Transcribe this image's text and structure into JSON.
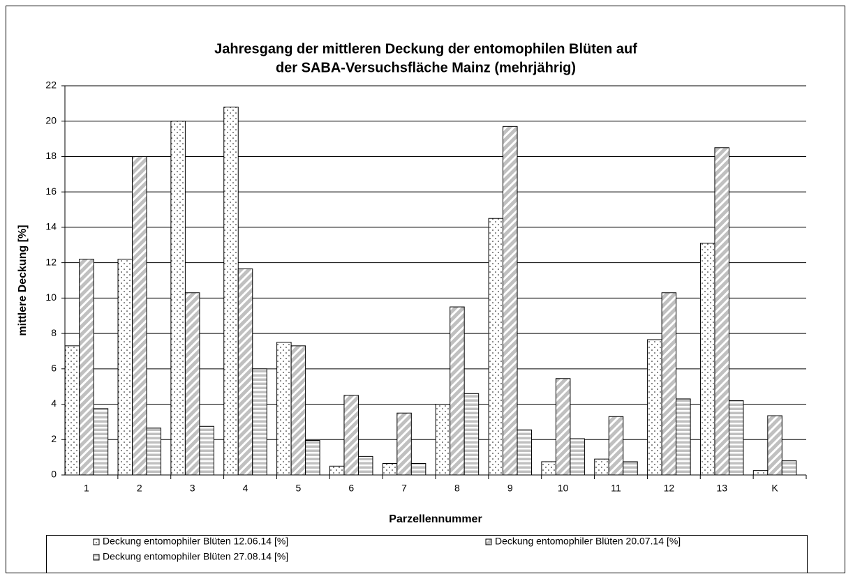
{
  "chart_data": {
    "type": "bar",
    "title_lines": [
      "Jahresgang der mittleren Deckung der entomophilen Blüten auf",
      "der SABA-Versuchsfläche Mainz (mehrjährig)"
    ],
    "x_label": "Parzellennummer",
    "y_label": "mittlere Deckung [%]",
    "categories": [
      "1",
      "2",
      "3",
      "4",
      "5",
      "6",
      "7",
      "8",
      "9",
      "10",
      "11",
      "12",
      "13",
      "K"
    ],
    "series": [
      {
        "name": "Deckung entomophiler Blüten  12.06.14 [%]",
        "color": "#ffffff",
        "pattern": "dots",
        "values": [
          7.3,
          12.2,
          20.0,
          20.8,
          7.5,
          0.5,
          0.65,
          4.0,
          14.5,
          0.75,
          0.9,
          7.65,
          13.1,
          0.25
        ]
      },
      {
        "name": "Deckung entomophiler Blüten  20.07.14 [%]",
        "color": "#c0c0c0",
        "pattern": "diagonal",
        "values": [
          12.2,
          18.0,
          10.3,
          11.65,
          7.3,
          4.5,
          3.5,
          9.5,
          19.7,
          5.45,
          3.3,
          10.3,
          18.5,
          3.35
        ]
      },
      {
        "name": "Deckung entomophiler Blüten  27.08.14 [%]",
        "color": "#c0c0c0",
        "pattern": "horizontal",
        "values": [
          3.75,
          2.65,
          2.75,
          6.0,
          1.95,
          1.05,
          0.65,
          4.6,
          2.55,
          2.05,
          0.75,
          4.3,
          4.2,
          0.8
        ]
      }
    ],
    "ylim": [
      0,
      22
    ],
    "yticks": [
      0,
      2,
      4,
      6,
      8,
      10,
      12,
      14,
      16,
      18,
      20,
      22
    ],
    "grid": true,
    "legend": "bottom"
  }
}
